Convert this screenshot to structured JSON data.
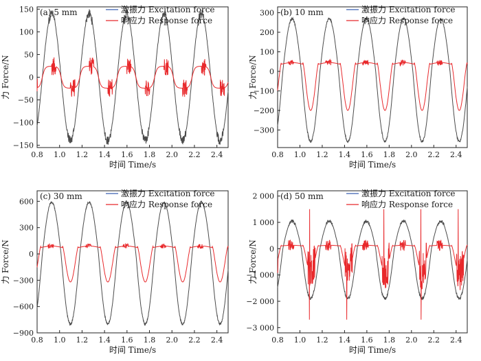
{
  "figure": {
    "background": "#ffffff"
  },
  "series_colors": {
    "excitation": "#4a4a4a",
    "response": "#e8282b",
    "legend_excitation": "#3a5fb0"
  },
  "chart_data": [
    {
      "type": "line",
      "title": "(a) 5 mm",
      "xlabel": "时间 Time/s",
      "ylabel": "力 Force/N",
      "xlim": [
        0.8,
        2.5
      ],
      "ylim": [
        -155,
        155
      ],
      "xticks": [
        0.8,
        1.0,
        1.2,
        1.4,
        1.6,
        1.8,
        2.0,
        2.2,
        2.4
      ],
      "yticks": [
        -150,
        -100,
        -50,
        0,
        50,
        100,
        150
      ],
      "ytick_labels": [
        "−150",
        "−100",
        "−50",
        "0",
        "50",
        "100",
        "150"
      ],
      "xtick_labels": [
        "0.8",
        "1.0",
        "1.2",
        "1.4",
        "1.6",
        "1.8",
        "2.0",
        "2.2",
        "2.4"
      ],
      "legend": {
        "position": "top-right",
        "entries": [
          "激振力 Excitation force",
          "响应力 Response force"
        ]
      },
      "period": 0.333,
      "x_first_peak": 0.93,
      "series": [
        {
          "name": "激振力 Excitation force",
          "amplitude": 140,
          "peak_noise": 10
        },
        {
          "name": "响应力 Response force",
          "amplitude": 45,
          "flat_level": 10,
          "burst": 20
        }
      ]
    },
    {
      "type": "line",
      "title": "(b) 10 mm",
      "xlabel": "时间 Time/s",
      "ylabel": "力 Force/N",
      "xlim": [
        0.8,
        2.5
      ],
      "ylim": [
        -390,
        330
      ],
      "xticks": [
        0.8,
        1.0,
        1.2,
        1.4,
        1.6,
        1.8,
        2.0,
        2.2,
        2.4
      ],
      "yticks": [
        -300,
        -200,
        -100,
        0,
        100,
        200,
        300
      ],
      "ytick_labels": [
        "−300",
        "−200",
        "−100",
        "0",
        "100",
        "200",
        "300"
      ],
      "xtick_labels": [
        "0.8",
        "1.0",
        "1.2",
        "1.4",
        "1.6",
        "1.8",
        "2.0",
        "2.2",
        "2.4"
      ],
      "legend": {
        "position": "top-right",
        "entries": [
          "激振力 Excitation force",
          "响应力 Response force"
        ]
      },
      "period": 0.333,
      "x_first_peak": 0.93,
      "series": [
        {
          "name": "激振力 Excitation force",
          "max": 270,
          "min": -360,
          "peak_noise": 6
        },
        {
          "name": "响应力 Response force",
          "flat_level": 45,
          "trough": -200,
          "burst": 15
        }
      ]
    },
    {
      "type": "line",
      "title": "(c) 30 mm",
      "xlabel": "时间 Time/s",
      "ylabel": "力 Force/N",
      "xlim": [
        0.8,
        2.5
      ],
      "ylim": [
        -900,
        720
      ],
      "xticks": [
        0.8,
        1.0,
        1.2,
        1.4,
        1.6,
        1.8,
        2.0,
        2.2,
        2.4
      ],
      "yticks": [
        -900,
        -600,
        -300,
        0,
        300,
        600
      ],
      "ytick_labels": [
        "−900",
        "−600",
        "−300",
        "0",
        "300",
        "600"
      ],
      "xtick_labels": [
        "0.8",
        "1.0",
        "1.2",
        "1.4",
        "1.6",
        "1.8",
        "2.0",
        "2.2",
        "2.4"
      ],
      "legend": {
        "position": "top-right",
        "entries": [
          "激振力 Excitation force",
          "响应力 Response force"
        ]
      },
      "period": 0.333,
      "x_first_peak": 0.93,
      "series": [
        {
          "name": "激振力 Excitation force",
          "max": 590,
          "min": -800,
          "peak_noise": 12
        },
        {
          "name": "响应力 Response force",
          "flat_level": 90,
          "trough": -320,
          "burst": 25
        }
      ]
    },
    {
      "type": "line",
      "title": "(d) 50 mm",
      "xlabel": "时间 Time/s",
      "ylabel": "力 Force/N",
      "xlim": [
        0.8,
        2.5
      ],
      "ylim": [
        -3200,
        2200
      ],
      "xticks": [
        0.8,
        1.0,
        1.2,
        1.4,
        1.6,
        1.8,
        2.0,
        2.2,
        2.4
      ],
      "yticks": [
        -3000,
        -2000,
        -1000,
        0,
        1000,
        2000
      ],
      "ytick_labels": [
        "−3 000",
        "−2 000",
        "−1 000",
        "0",
        "1 000",
        "2 000"
      ],
      "xtick_labels": [
        "0.8",
        "1.0",
        "1.2",
        "1.4",
        "1.6",
        "1.8",
        "2.0",
        "2.2",
        "2.4"
      ],
      "legend": {
        "position": "top-right",
        "entries": [
          "激振力 Excitation force",
          "响应力 Response force"
        ]
      },
      "period": 0.333,
      "x_first_peak": 0.93,
      "series": [
        {
          "name": "激振力 Excitation force",
          "max": 1050,
          "min": -1900,
          "peak_noise": 60
        },
        {
          "name": "响应力 Response force",
          "flat_level": 130,
          "trough": -900,
          "burst": 700
        }
      ]
    }
  ]
}
